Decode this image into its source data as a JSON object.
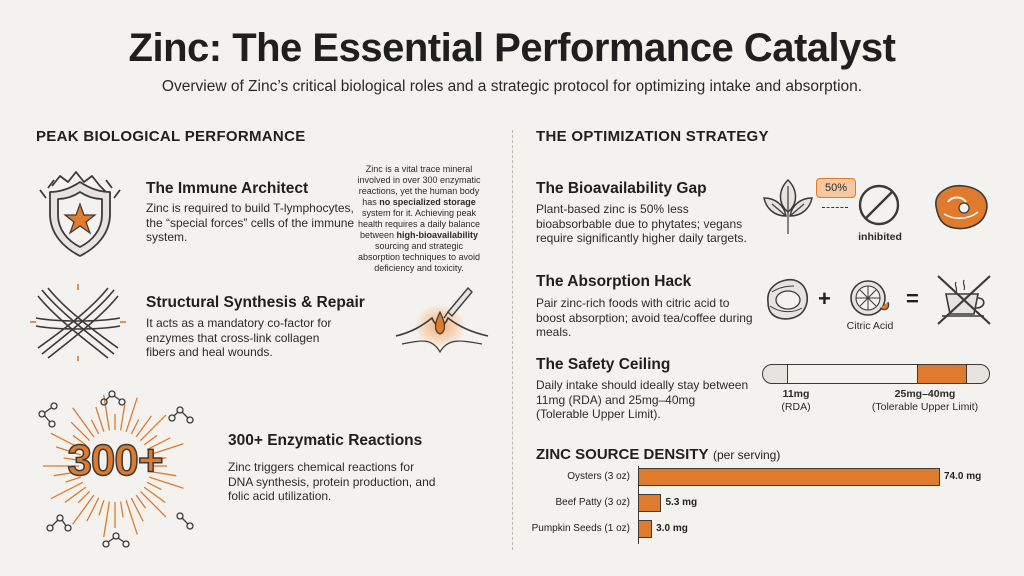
{
  "title": "Zinc: The Essential Performance Catalyst",
  "subtitle": "Overview of Zinc’s critical biological roles and a strategic protocol for optimizing intake and absorption.",
  "left": {
    "heading": "PEAK BIOLOGICAL PERFORMANCE",
    "immune": {
      "title": "The Immune Architect",
      "text": "Zinc is required to build T-lymphocytes, the “special forces” cells of the immune system."
    },
    "note": {
      "pre": "Zinc is a vital trace mineral involved in over 300 enzymatic reactions, yet the human body has ",
      "b1": "no specialized storage",
      "mid": " system for it. Achieving peak health requires a daily balance between ",
      "b2": "high-bioavailability",
      "post": " sourcing and strategic absorption techniques to avoid deficiency and toxicity."
    },
    "structural": {
      "title": "Structural Synthesis & Repair",
      "text": "It acts as a mandatory co-factor for enzymes that cross-link collagen fibers and heal wounds."
    },
    "enzymatic": {
      "badge": "300+",
      "title": "300+ Enzymatic Reactions",
      "text": "Zinc triggers chemical reactions for DNA synthesis, protein production, and folic acid utilization."
    }
  },
  "right": {
    "heading": "THE OPTIMIZATION STRATEGY",
    "bio": {
      "title": "The Bioavailability Gap",
      "text": "Plant-based zinc is 50% less bioabsorbable due to phytates; vegans require significantly higher daily targets.",
      "badge": "50%",
      "inhibited": "inhibited"
    },
    "hack": {
      "title": "The Absorption Hack",
      "text": "Pair zinc-rich foods with citric acid to boost absorption; avoid tea/coffee during meals.",
      "plus": "+",
      "equals": "=",
      "citric": "Citric Acid"
    },
    "safety": {
      "title": "The Safety Ceiling",
      "text": "Daily intake should ideally stay between 11mg (RDA) and 25mg–40mg (Tolerable Upper Limit).",
      "rda_value": "11mg",
      "rda_label": "(RDA)",
      "ul_value": "25mg–40mg",
      "ul_label": "(Tolerable Upper Limit)"
    },
    "density": {
      "heading": "ZINC SOURCE DENSITY",
      "heading_suffix": "(per serving)"
    }
  },
  "colors": {
    "accent": "#e07a2d",
    "background": "#f4f2ee",
    "text": "#1f1f1f"
  },
  "chart_data": {
    "type": "bar",
    "orientation": "horizontal",
    "title": "ZINC SOURCE DENSITY (per serving)",
    "categories": [
      "Oysters (3 oz)",
      "Beef Patty (3 oz)",
      "Pumpkin Seeds (1 oz)"
    ],
    "values": [
      74.0,
      5.3,
      3.0
    ],
    "value_labels": [
      "74.0 mg",
      "5.3 mg",
      "3.0 mg"
    ],
    "grid": false
  }
}
